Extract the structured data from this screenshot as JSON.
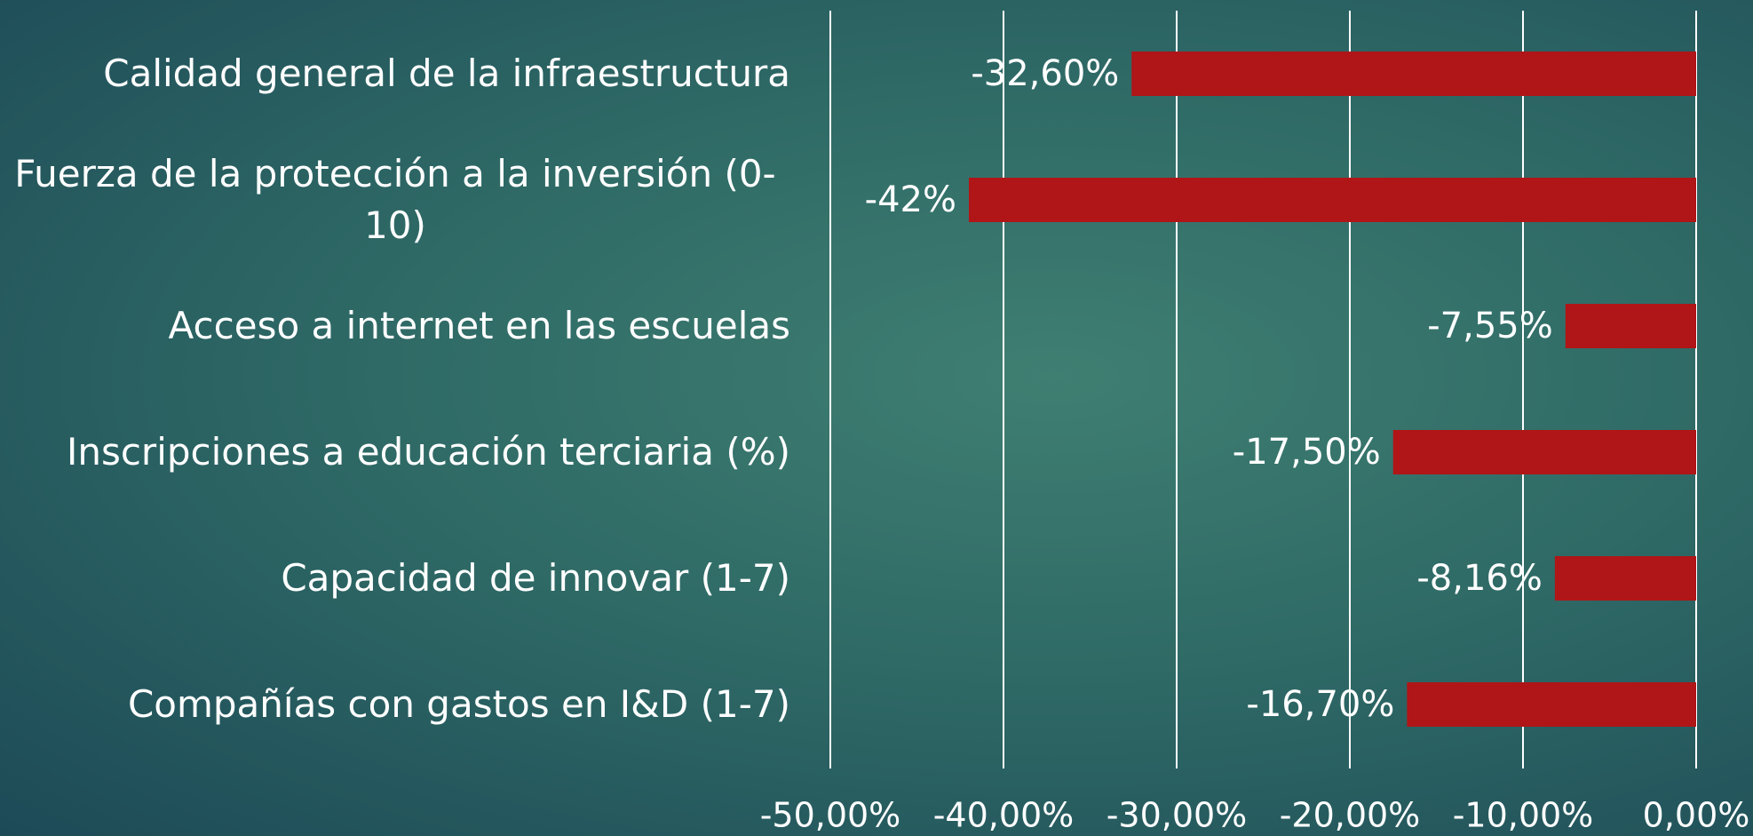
{
  "chart_data": {
    "type": "barh",
    "categories": [
      "Calidad general de la infraestructura",
      "Fuerza de la protección a la inversión (0-10)",
      "Acceso a internet en las escuelas",
      "Inscripciones a educación terciaria (%)",
      "Capacidad de innovar (1-7)",
      "Compañías con gastos en I&D (1-7)"
    ],
    "values": [
      -32.6,
      -42,
      -7.55,
      -17.5,
      -8.16,
      -16.7
    ],
    "value_labels": [
      "-32,60%",
      "-42%",
      "-7,55%",
      "-17,50%",
      "-8,16%",
      "-16,70%"
    ],
    "color": "#b01517",
    "xlim": [
      -50,
      0
    ],
    "xticks": [
      {
        "value": -50,
        "label": "-50,00%"
      },
      {
        "value": -40,
        "label": "-40,00%"
      },
      {
        "value": -30,
        "label": "-30,00%"
      },
      {
        "value": -20,
        "label": "-20,00%"
      },
      {
        "value": -10,
        "label": "-10,00%"
      },
      {
        "value": 0,
        "label": "0,00%"
      }
    ],
    "grid": true
  }
}
